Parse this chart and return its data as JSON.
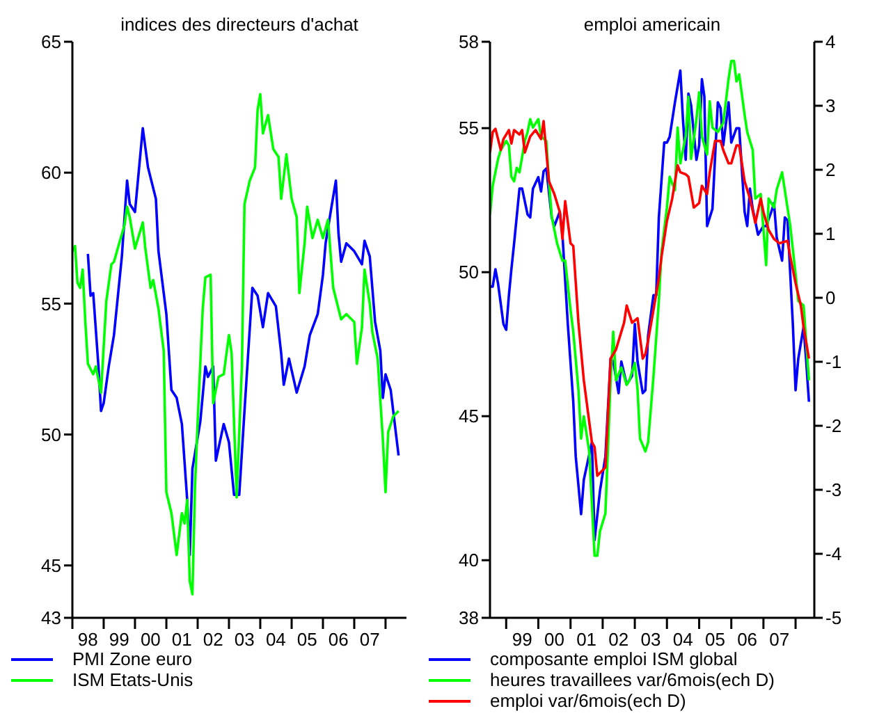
{
  "chart_data": [
    {
      "type": "line",
      "title": "indices des directeurs d'achat",
      "legend": "bottom",
      "xlim": [
        "1998-01",
        "2008-09"
      ],
      "ylim": [
        43,
        65
      ],
      "yticks": [
        43,
        45,
        50,
        55,
        60,
        65
      ],
      "xticks": [
        {
          "value": "1998-01",
          "label": null
        },
        {
          "value": "1998-07",
          "label": "98"
        },
        {
          "value": "1999-01",
          "label": null
        },
        {
          "value": "1999-07",
          "label": "99"
        },
        {
          "value": "2000-01",
          "label": null
        },
        {
          "value": "2000-07",
          "label": "00"
        },
        {
          "value": "2001-01",
          "label": null
        },
        {
          "value": "2001-07",
          "label": "01"
        },
        {
          "value": "2002-01",
          "label": null
        },
        {
          "value": "2002-07",
          "label": "02"
        },
        {
          "value": "2003-01",
          "label": null
        },
        {
          "value": "2003-07",
          "label": "03"
        },
        {
          "value": "2004-01",
          "label": null
        },
        {
          "value": "2004-07",
          "label": "04"
        },
        {
          "value": "2005-01",
          "label": null
        },
        {
          "value": "2005-07",
          "label": "05"
        },
        {
          "value": "2006-01",
          "label": null
        },
        {
          "value": "2006-07",
          "label": "06"
        },
        {
          "value": "2007-01",
          "label": null
        },
        {
          "value": "2007-07",
          "label": "07"
        },
        {
          "value": "2008-01",
          "label": null
        }
      ],
      "series": [
        {
          "name": "PMI Zone euro",
          "color": "#0000ff",
          "x": [
            "1998-07",
            "1998-08",
            "1998-09",
            "1998-11",
            "1998-12",
            "1999-01",
            "1999-03",
            "1999-05",
            "1999-08",
            "1999-10",
            "1999-11",
            "2000-01",
            "2000-04",
            "2000-06",
            "2000-09",
            "2000-10",
            "2001-01",
            "2001-03",
            "2001-05",
            "2001-07",
            "2001-09",
            "2001-10",
            "2001-11",
            "2002-02",
            "2002-04",
            "2002-05",
            "2002-07",
            "2002-08",
            "2002-11",
            "2003-01",
            "2003-03",
            "2003-05",
            "2003-07",
            "2003-10",
            "2003-12",
            "2004-02",
            "2004-04",
            "2004-07",
            "2004-09",
            "2004-10",
            "2004-12",
            "2005-03",
            "2005-06",
            "2005-08",
            "2005-11",
            "2006-01",
            "2006-02",
            "2006-04",
            "2006-06",
            "2006-07",
            "2006-08",
            "2006-10",
            "2007-01",
            "2007-04",
            "2007-05",
            "2007-07",
            "2007-09",
            "2007-11",
            "2007-12",
            "2008-01",
            "2008-03",
            "2008-06"
          ],
          "values": [
            56.9,
            55.3,
            55.4,
            52.6,
            50.9,
            51.2,
            52.6,
            53.8,
            56.8,
            59.7,
            58.8,
            58.5,
            61.7,
            60.2,
            59.0,
            57.0,
            54.6,
            51.7,
            51.4,
            50.4,
            47.5,
            45.4,
            48.7,
            50.5,
            52.6,
            52.2,
            52.6,
            49.0,
            50.4,
            49.7,
            47.7,
            47.7,
            50.9,
            55.6,
            55.3,
            54.1,
            55.4,
            54.9,
            53.1,
            51.9,
            52.9,
            51.6,
            52.6,
            53.8,
            54.6,
            56.1,
            57.3,
            58.5,
            59.7,
            57.7,
            56.6,
            57.3,
            57.0,
            56.5,
            57.4,
            56.8,
            54.3,
            53.2,
            51.4,
            52.3,
            51.7,
            49.2
          ]
        },
        {
          "name": "ISM Etats-Unis",
          "color": "#00ff00",
          "x": [
            "1998-01",
            "1998-02",
            "1998-03",
            "1998-04",
            "1998-05",
            "1998-06",
            "1998-07",
            "1998-09",
            "1998-10",
            "1998-12",
            "1999-02",
            "1999-04",
            "1999-05",
            "1999-07",
            "1999-09",
            "1999-10",
            "1999-11",
            "2000-01",
            "2000-04",
            "2000-05",
            "2000-07",
            "2000-08",
            "2000-10",
            "2000-12",
            "2001-01",
            "2001-03",
            "2001-05",
            "2001-07",
            "2001-08",
            "2001-09",
            "2001-10",
            "2001-11",
            "2001-12",
            "2002-01",
            "2002-03",
            "2002-04",
            "2002-06",
            "2002-07",
            "2002-09",
            "2002-11",
            "2003-01",
            "2003-02",
            "2003-04",
            "2003-06",
            "2003-07",
            "2003-09",
            "2003-11",
            "2003-12",
            "2004-01",
            "2004-02",
            "2004-04",
            "2004-06",
            "2004-08",
            "2004-09",
            "2004-11",
            "2005-01",
            "2005-03",
            "2005-04",
            "2005-06",
            "2005-07",
            "2005-09",
            "2005-11",
            "2006-01",
            "2006-03",
            "2006-05",
            "2006-07",
            "2006-08",
            "2006-10",
            "2007-01",
            "2007-02",
            "2007-04",
            "2007-05",
            "2007-07",
            "2007-08",
            "2007-10",
            "2007-12",
            "2008-01",
            "2008-02",
            "2008-04",
            "2008-06"
          ],
          "values": [
            57.0,
            57.2,
            55.8,
            55.6,
            56.3,
            54.3,
            52.7,
            52.3,
            52.6,
            51.6,
            55.1,
            56.5,
            56.6,
            57.3,
            58.0,
            58.7,
            58.3,
            57.1,
            58.1,
            57.1,
            55.6,
            55.9,
            54.8,
            53.2,
            47.8,
            47.0,
            45.4,
            47.0,
            46.6,
            47.5,
            44.4,
            43.9,
            48.0,
            50.5,
            54.8,
            56.0,
            56.1,
            51.2,
            52.2,
            52.3,
            53.8,
            53.1,
            47.6,
            52.6,
            58.8,
            59.7,
            60.2,
            62.4,
            63.0,
            61.5,
            62.2,
            60.9,
            60.6,
            59.0,
            60.7,
            59.0,
            58.3,
            55.4,
            57.3,
            58.7,
            57.5,
            58.2,
            57.5,
            58.2,
            55.6,
            54.8,
            54.4,
            54.6,
            54.3,
            52.7,
            54.1,
            56.3,
            55.0,
            53.9,
            52.9,
            49.8,
            47.8,
            50.1,
            50.7,
            50.9
          ]
        }
      ]
    },
    {
      "type": "line",
      "title": "emploi americain",
      "legend": "bottom",
      "xlim": [
        "1998-07",
        "2008-08"
      ],
      "ylim": [
        38,
        58
      ],
      "yticks": [
        38,
        40,
        45,
        50,
        55,
        58
      ],
      "y2lim": [
        -5,
        4
      ],
      "y2ticks": [
        -5,
        -4,
        -3,
        -2,
        -1,
        0,
        1,
        2,
        3,
        4
      ],
      "xticks": [
        {
          "value": "1999-01",
          "label": null
        },
        {
          "value": "1999-07",
          "label": "99"
        },
        {
          "value": "2000-01",
          "label": null
        },
        {
          "value": "2000-07",
          "label": "00"
        },
        {
          "value": "2001-01",
          "label": null
        },
        {
          "value": "2001-07",
          "label": "01"
        },
        {
          "value": "2002-01",
          "label": null
        },
        {
          "value": "2002-07",
          "label": "02"
        },
        {
          "value": "2003-01",
          "label": null
        },
        {
          "value": "2003-07",
          "label": "03"
        },
        {
          "value": "2004-01",
          "label": null
        },
        {
          "value": "2004-07",
          "label": "04"
        },
        {
          "value": "2005-01",
          "label": null
        },
        {
          "value": "2005-07",
          "label": "05"
        },
        {
          "value": "2006-01",
          "label": null
        },
        {
          "value": "2006-07",
          "label": "06"
        },
        {
          "value": "2007-01",
          "label": null
        },
        {
          "value": "2007-07",
          "label": "07"
        },
        {
          "value": "2008-01",
          "label": null
        }
      ],
      "series": [
        {
          "name": "composante emploi ISM global",
          "color": "#0000ff",
          "x": [
            "1998-07",
            "1998-08",
            "1998-09",
            "1998-10",
            "1998-12",
            "1999-01",
            "1999-02",
            "1999-03",
            "1999-04",
            "1999-06",
            "1999-07",
            "1999-09",
            "1999-10",
            "1999-11",
            "2000-01",
            "2000-02",
            "2000-03",
            "2000-04",
            "2000-06",
            "2000-07",
            "2000-09",
            "2000-10",
            "2000-12",
            "2001-02",
            "2001-03",
            "2001-05",
            "2001-06",
            "2001-09",
            "2001-10",
            "2001-12",
            "2002-02",
            "2002-04",
            "2002-05",
            "2002-07",
            "2002-08",
            "2002-10",
            "2002-12",
            "2003-01",
            "2003-02",
            "2003-04",
            "2003-05",
            "2003-06",
            "2003-08",
            "2003-09",
            "2003-10",
            "2003-12",
            "2004-01",
            "2004-02",
            "2004-04",
            "2004-06",
            "2004-07",
            "2004-08",
            "2004-09",
            "2004-10",
            "2004-12",
            "2005-01",
            "2005-02",
            "2005-03",
            "2005-04",
            "2005-06",
            "2005-08",
            "2005-09",
            "2005-10",
            "2005-12",
            "2006-01",
            "2006-03",
            "2006-04",
            "2006-06",
            "2006-07",
            "2006-08",
            "2006-09",
            "2006-11",
            "2007-01",
            "2007-02",
            "2007-04",
            "2007-05",
            "2007-06",
            "2007-08",
            "2007-09",
            "2007-10",
            "2007-12",
            "2008-01",
            "2008-02",
            "2008-04",
            "2008-05",
            "2008-06"
          ],
          "values": [
            49.5,
            49.5,
            50.1,
            49.6,
            48.2,
            48.0,
            49.2,
            50.1,
            51.0,
            52.9,
            52.9,
            52.0,
            51.9,
            52.9,
            53.3,
            52.8,
            53.5,
            53.6,
            51.9,
            51.6,
            52.1,
            51.3,
            48.2,
            45.5,
            43.6,
            41.6,
            42.8,
            44.1,
            40.7,
            42.4,
            43.6,
            47.0,
            46.9,
            45.8,
            46.9,
            46.1,
            46.4,
            48.2,
            46.9,
            45.8,
            45.9,
            47.8,
            49.2,
            49.2,
            51.9,
            54.5,
            54.5,
            54.7,
            55.9,
            57.0,
            55.3,
            53.9,
            56.2,
            55.8,
            53.9,
            54.4,
            56.7,
            56.1,
            51.6,
            52.2,
            55.9,
            55.7,
            54.4,
            55.9,
            54.5,
            55.0,
            55.0,
            52.1,
            51.6,
            52.9,
            52.2,
            51.3,
            51.6,
            51.6,
            52.1,
            52.4,
            51.2,
            50.4,
            51.9,
            51.8,
            48.2,
            45.9,
            47.0,
            48.1,
            46.9,
            45.5
          ]
        },
        {
          "name": "heures travaillees var/6mois(ech D)",
          "color": "#00ff00",
          "axis": "y2",
          "x": [
            "1998-07",
            "1998-08",
            "1998-10",
            "1998-11",
            "1999-01",
            "1999-02",
            "1999-03",
            "1999-04",
            "1999-05",
            "1999-06",
            "1999-08",
            "1999-09",
            "1999-10",
            "1999-11",
            "2000-01",
            "2000-02",
            "2000-04",
            "2000-05",
            "2000-06",
            "2000-08",
            "2000-10",
            "2000-11",
            "2001-01",
            "2001-02",
            "2001-04",
            "2001-05",
            "2001-06",
            "2001-08",
            "2001-10",
            "2001-11",
            "2001-12",
            "2002-02",
            "2002-04",
            "2002-05",
            "2002-06",
            "2002-08",
            "2002-10",
            "2002-11",
            "2003-01",
            "2003-02",
            "2003-03",
            "2003-05",
            "2003-06",
            "2003-08",
            "2003-10",
            "2003-11",
            "2004-01",
            "2004-02",
            "2004-04",
            "2004-05",
            "2004-06",
            "2004-08",
            "2004-09",
            "2004-10",
            "2004-12",
            "2005-01",
            "2005-02",
            "2005-04",
            "2005-05",
            "2005-06",
            "2005-08",
            "2005-10",
            "2005-11",
            "2005-12",
            "2006-01",
            "2006-02",
            "2006-03",
            "2006-04",
            "2006-06",
            "2006-07",
            "2006-09",
            "2006-10",
            "2006-12",
            "2007-02",
            "2007-03",
            "2007-05",
            "2007-06",
            "2007-08",
            "2007-10",
            "2007-11",
            "2008-01",
            "2008-02",
            "2008-04",
            "2008-06"
          ],
          "values": [
            1.3,
            1.75,
            2.17,
            2.31,
            2.45,
            2.38,
            1.89,
            1.82,
            2.03,
            1.96,
            2.45,
            2.59,
            2.79,
            2.66,
            2.79,
            2.52,
            2.45,
            1.82,
            1.27,
            0.85,
            0.58,
            0.58,
            -0.19,
            -0.53,
            -1.44,
            -2.2,
            -1.85,
            -2.4,
            -4.03,
            -4.03,
            -3.65,
            -3.37,
            -1.29,
            -0.53,
            -1.29,
            -1.09,
            -1.36,
            -1.29,
            -1.02,
            -1.43,
            -2.2,
            -2.4,
            -2.26,
            -1.23,
            -0.05,
            0.72,
            1.41,
            1.89,
            1.68,
            2.66,
            2.1,
            2.52,
            3.14,
            2.17,
            2.79,
            3.21,
            2.52,
            2.24,
            3.07,
            2.66,
            2.59,
            2.73,
            3.07,
            3.42,
            3.7,
            3.7,
            3.38,
            3.49,
            2.86,
            2.59,
            2.31,
            1.55,
            1.62,
            0.51,
            1.55,
            1.41,
            1.69,
            1.96,
            1.41,
            1.13,
            0.37,
            -0.05,
            -0.12,
            -1.29
          ]
        },
        {
          "name": "emploi var/6mois(ech D)",
          "color": "#ff0000",
          "axis": "y2",
          "x": [
            "1998-07",
            "1998-08",
            "1998-09",
            "1998-11",
            "1998-12",
            "1999-02",
            "1999-03",
            "1999-04",
            "1999-06",
            "1999-07",
            "1999-08",
            "1999-10",
            "1999-12",
            "2000-02",
            "2000-03",
            "2000-05",
            "2000-07",
            "2000-09",
            "2000-10",
            "2000-11",
            "2001-01",
            "2001-02",
            "2001-04",
            "2001-06",
            "2001-09",
            "2001-10",
            "2001-11",
            "2002-02",
            "2002-04",
            "2002-06",
            "2002-09",
            "2002-10",
            "2002-12",
            "2003-02",
            "2003-04",
            "2003-05",
            "2003-06",
            "2003-08",
            "2003-10",
            "2003-11",
            "2004-01",
            "2004-03",
            "2004-05",
            "2004-06",
            "2004-08",
            "2004-09",
            "2004-11",
            "2005-01",
            "2005-02",
            "2005-04",
            "2005-05",
            "2005-07",
            "2005-09",
            "2005-10",
            "2005-12",
            "2006-01",
            "2006-03",
            "2006-04",
            "2006-06",
            "2006-08",
            "2006-10",
            "2006-12",
            "2007-01",
            "2007-03",
            "2007-05",
            "2007-07",
            "2007-10",
            "2007-11",
            "2008-01",
            "2008-03",
            "2008-04",
            "2008-06"
          ],
          "values": [
            2.27,
            2.59,
            2.64,
            2.31,
            2.48,
            2.62,
            2.41,
            2.62,
            2.55,
            2.62,
            2.27,
            2.52,
            2.62,
            2.48,
            2.76,
            1.82,
            1.62,
            1.34,
            0.92,
            1.51,
            0.85,
            0.81,
            -0.39,
            -1.29,
            -2.26,
            -2.33,
            -2.78,
            -2.65,
            -0.95,
            -0.81,
            -0.39,
            -0.12,
            -0.39,
            -0.32,
            -0.95,
            -0.88,
            -0.67,
            -0.19,
            0.3,
            0.65,
            1.2,
            1.55,
            2.07,
            1.96,
            1.93,
            1.89,
            1.41,
            1.48,
            1.75,
            1.62,
            1.96,
            2.45,
            2.45,
            2.31,
            2.1,
            2.1,
            2.38,
            2.38,
            1.82,
            1.55,
            1.17,
            1.55,
            1.34,
            1.06,
            0.92,
            0.85,
            0.89,
            0.65,
            0.23,
            -0.12,
            -0.46,
            -0.95
          ]
        }
      ]
    }
  ]
}
